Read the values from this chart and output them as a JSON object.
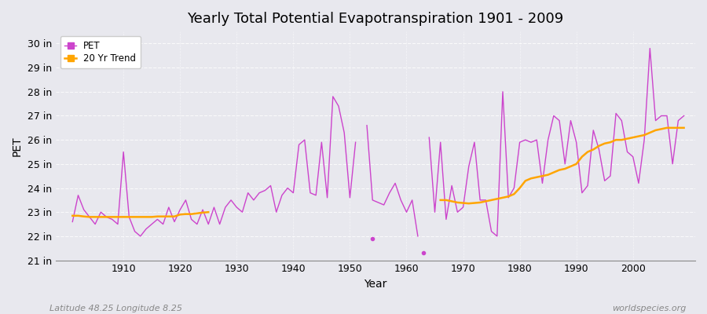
{
  "title": "Yearly Total Potential Evapotranspiration 1901 - 2009",
  "ylabel": "PET",
  "xlabel": "Year",
  "bottom_left_label": "Latitude 48.25 Longitude 8.25",
  "bottom_right_label": "worldspecies.org",
  "background_color": "#e8e8ee",
  "plot_bg_color": "#e8e8ee",
  "pet_color": "#cc44cc",
  "trend_color": "#ffa500",
  "ylim": [
    21.0,
    30.5
  ],
  "yticks": [
    21,
    22,
    23,
    24,
    25,
    26,
    27,
    28,
    29,
    30
  ],
  "xlim": [
    1898,
    2011
  ],
  "years": [
    1901,
    1902,
    1903,
    1904,
    1905,
    1906,
    1907,
    1908,
    1909,
    1910,
    1911,
    1912,
    1913,
    1914,
    1915,
    1916,
    1917,
    1918,
    1919,
    1920,
    1921,
    1922,
    1923,
    1924,
    1925,
    1926,
    1927,
    1928,
    1929,
    1930,
    1931,
    1932,
    1933,
    1934,
    1935,
    1936,
    1937,
    1938,
    1939,
    1940,
    1941,
    1942,
    1943,
    1944,
    1945,
    1946,
    1947,
    1948,
    1949,
    1950,
    1951,
    1952,
    1953,
    1954,
    1955,
    1956,
    1957,
    1958,
    1959,
    1960,
    1961,
    1962,
    1963,
    1964,
    1965,
    1966,
    1967,
    1968,
    1969,
    1970,
    1971,
    1972,
    1973,
    1974,
    1975,
    1976,
    1977,
    1978,
    1979,
    1980,
    1981,
    1982,
    1983,
    1984,
    1985,
    1986,
    1987,
    1988,
    1989,
    1990,
    1991,
    1992,
    1993,
    1994,
    1995,
    1996,
    1997,
    1998,
    1999,
    2000,
    2001,
    2002,
    2003,
    2004,
    2005,
    2006,
    2007,
    2008,
    2009
  ],
  "pet_values": [
    22.6,
    23.7,
    23.1,
    22.8,
    22.5,
    23.0,
    22.8,
    22.7,
    22.5,
    25.5,
    22.8,
    22.2,
    22.0,
    22.3,
    22.5,
    22.7,
    22.5,
    23.2,
    22.6,
    23.1,
    23.5,
    22.7,
    22.5,
    23.1,
    22.5,
    23.2,
    22.5,
    23.2,
    23.5,
    23.2,
    23.0,
    23.8,
    23.5,
    23.8,
    23.9,
    24.1,
    23.0,
    23.7,
    24.0,
    23.8,
    25.8,
    26.0,
    23.8,
    23.7,
    25.9,
    23.6,
    27.8,
    27.4,
    26.3,
    23.6,
    25.9,
    null,
    26.6,
    23.5,
    23.4,
    23.3,
    23.8,
    24.2,
    23.5,
    23.0,
    23.5,
    22.0,
    null,
    26.1,
    23.0,
    25.9,
    22.7,
    24.1,
    23.0,
    23.2,
    24.9,
    25.9,
    23.5,
    23.5,
    22.2,
    22.0,
    28.0,
    23.6,
    24.0,
    25.9,
    26.0,
    25.9,
    26.0,
    24.2,
    26.0,
    27.0,
    26.8,
    25.0,
    26.8,
    25.9,
    23.8,
    24.1,
    26.4,
    25.6,
    24.3,
    24.5,
    27.1,
    26.8,
    25.5,
    25.3,
    24.2,
    26.0,
    29.8,
    26.8,
    27.0,
    27.0,
    25.0,
    26.8,
    27.0
  ],
  "isolated_points": [
    {
      "year": 1954,
      "value": 21.9
    },
    {
      "year": 1963,
      "value": 21.3
    }
  ],
  "trend_segment1_years": [
    1901,
    1902,
    1903,
    1904,
    1905,
    1906,
    1907,
    1908,
    1909,
    1910,
    1911,
    1912,
    1913,
    1914,
    1915,
    1916,
    1917,
    1918,
    1919,
    1920,
    1921,
    1922,
    1923,
    1924,
    1925
  ],
  "trend_segment1_values": [
    22.85,
    22.85,
    22.82,
    22.8,
    22.8,
    22.8,
    22.8,
    22.8,
    22.8,
    22.8,
    22.8,
    22.8,
    22.8,
    22.8,
    22.8,
    22.82,
    22.82,
    22.82,
    22.82,
    22.9,
    22.92,
    22.92,
    22.95,
    22.98,
    23.0
  ],
  "trend_segment2_years": [
    1966,
    1967,
    1968,
    1969,
    1970,
    1971,
    1972,
    1973,
    1974,
    1975,
    1976,
    1977,
    1978,
    1979,
    1980,
    1981,
    1982,
    1983,
    1984,
    1985,
    1986,
    1987,
    1988,
    1989,
    1990,
    1991,
    1992,
    1993,
    1994,
    1995,
    1996,
    1997,
    1998,
    1999,
    2000,
    2001,
    2002,
    2003,
    2004,
    2005,
    2006,
    2007,
    2008,
    2009
  ],
  "trend_segment2_values": [
    23.5,
    23.5,
    23.45,
    23.4,
    23.38,
    23.36,
    23.38,
    23.4,
    23.45,
    23.5,
    23.55,
    23.6,
    23.65,
    23.75,
    24.0,
    24.3,
    24.4,
    24.45,
    24.5,
    24.55,
    24.65,
    24.75,
    24.8,
    24.9,
    25.0,
    25.3,
    25.5,
    25.6,
    25.75,
    25.85,
    25.9,
    26.0,
    26.0,
    26.05,
    26.1,
    26.15,
    26.2,
    26.3,
    26.4,
    26.45,
    26.5,
    26.5,
    26.5,
    26.5
  ]
}
